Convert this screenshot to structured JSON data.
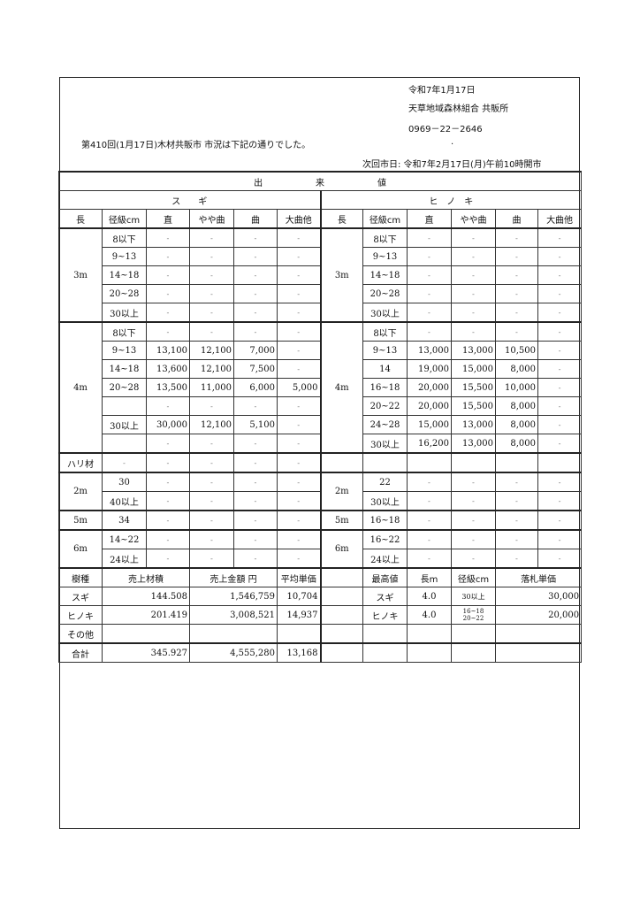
{
  "header": {
    "date": "令和7年1月17日",
    "organization": "天草地域森林組合 共販所",
    "phone": "0969－22－2646",
    "dot": ".",
    "notice": "第410回(1月17日)木材共販市 市況は下記の通りでした。",
    "next_market": "次回市日: 令和7年2月17日(月)午前10時開市"
  },
  "table": {
    "title": "出　　　　　　来　　　　　　値",
    "sugi_label": "ス　　ギ",
    "hinoki_label": "ヒ　ノ　キ",
    "columns": [
      "長",
      "径級cm",
      "直",
      "やや曲",
      "曲",
      "大曲他",
      "長",
      "径級cm",
      "直",
      "やや曲",
      "曲",
      "大曲他"
    ],
    "sections": [
      {
        "left_len": "3m",
        "right_len": "3m",
        "rows": [
          {
            "l": [
              "8以下",
              "-",
              "-",
              "-",
              "-"
            ],
            "r": [
              "8以下",
              "-",
              "-",
              "-",
              "-"
            ]
          },
          {
            "l": [
              "9~13",
              "-",
              "-",
              "-",
              "-"
            ],
            "r": [
              "9~13",
              "-",
              "-",
              "-",
              "-"
            ]
          },
          {
            "l": [
              "14~18",
              "-",
              "-",
              "-",
              "-"
            ],
            "r": [
              "14~18",
              "-",
              "-",
              "-",
              "-"
            ]
          },
          {
            "l": [
              "20~28",
              "-",
              "-",
              "-",
              "-"
            ],
            "r": [
              "20~28",
              "-",
              "-",
              "-",
              "-"
            ]
          },
          {
            "l": [
              "30以上",
              "-",
              "-",
              "-",
              "-"
            ],
            "r": [
              "30以上",
              "-",
              "-",
              "-",
              "-"
            ]
          }
        ]
      },
      {
        "left_len": "4m",
        "right_len": "4m",
        "rows": [
          {
            "l": [
              "8以下",
              "-",
              "-",
              "-",
              "-"
            ],
            "r": [
              "8以下",
              "-",
              "-",
              "-",
              "-"
            ]
          },
          {
            "l": [
              "9~13",
              "13,100",
              "12,100",
              "7,000",
              "-"
            ],
            "r": [
              "9~13",
              "13,000",
              "13,000",
              "10,500",
              "-"
            ]
          },
          {
            "l": [
              "14~18",
              "13,600",
              "12,100",
              "7,500",
              "-"
            ],
            "r": [
              "14",
              "19,000",
              "15,000",
              "8,000",
              "-"
            ]
          },
          {
            "l": [
              "20~28",
              "13,500",
              "11,000",
              "6,000",
              "5,000"
            ],
            "r": [
              "16~18",
              "20,000",
              "15,500",
              "10,000",
              "-"
            ]
          },
          {
            "l": [
              "",
              "-",
              "-",
              "-",
              "-"
            ],
            "r": [
              "20~22",
              "20,000",
              "15,500",
              "8,000",
              "-"
            ]
          },
          {
            "l": [
              "30以上",
              "30,000",
              "12,100",
              "5,100",
              "-"
            ],
            "r": [
              "24~28",
              "15,000",
              "13,000",
              "8,000",
              "-"
            ]
          },
          {
            "l": [
              "",
              "-",
              "-",
              "-",
              "-"
            ],
            "r": [
              "30以上",
              "16,200",
              "13,000",
              "8,000",
              "-"
            ]
          }
        ]
      },
      {
        "left_len": "ハリ材",
        "right_len": "",
        "rows": [
          {
            "l": null,
            "lfull": [
              "-",
              "-",
              "-",
              "-",
              "-"
            ],
            "r": [
              "",
              "",
              "",
              "",
              ""
            ]
          }
        ]
      },
      {
        "left_len": "2m",
        "right_len": "2m",
        "rows": [
          {
            "l": [
              "30",
              "-",
              "-",
              "-",
              "-"
            ],
            "r": [
              "22",
              "-",
              "-",
              "-",
              "-"
            ]
          },
          {
            "l": [
              "40以上",
              "-",
              "-",
              "-",
              "-"
            ],
            "r": [
              "30以上",
              "-",
              "-",
              "-",
              "-"
            ]
          }
        ]
      },
      {
        "left_len": "5m",
        "right_len": "5m",
        "rows": [
          {
            "l": [
              "34",
              "-",
              "-",
              "-",
              "-"
            ],
            "r": [
              "16~18",
              "-",
              "-",
              "-",
              "-"
            ]
          }
        ]
      },
      {
        "left_len": "6m",
        "right_len": "6m",
        "rows": [
          {
            "l": [
              "14~22",
              "-",
              "-",
              "-",
              "-"
            ],
            "r": [
              "16~22",
              "-",
              "-",
              "-",
              "-"
            ]
          },
          {
            "l": [
              "24以上",
              "-",
              "-",
              "-",
              "-"
            ],
            "r": [
              "24以上",
              "-",
              "-",
              "-",
              "-"
            ]
          }
        ]
      }
    ]
  },
  "summary": {
    "headers": {
      "species": "樹種",
      "volume": "売上材積",
      "amount": "売上金額 円",
      "avg": "平均単価",
      "top": "最高値",
      "length": "長m",
      "diameter": "径級cm",
      "price": "落札単価"
    },
    "rows": [
      {
        "species": "スギ",
        "volume": "144.508",
        "amount": "1,546,759",
        "avg": "10,704",
        "top": "スギ",
        "length": "4.0",
        "diameter": "30以上",
        "price": "30,000"
      },
      {
        "species": "ヒノキ",
        "volume": "201.419",
        "amount": "3,008,521",
        "avg": "14,937",
        "top": "ヒノキ",
        "length": "4.0",
        "diameter": "16~18\n20~22",
        "price": "20,000"
      },
      {
        "species": "その他",
        "volume": "",
        "amount": "",
        "avg": "",
        "top": "",
        "length": "",
        "diameter": "",
        "price": ""
      },
      {
        "species": "合計",
        "volume": "345.927",
        "amount": "4,555,280",
        "avg": "13,168",
        "top": "",
        "length": "",
        "diameter": "",
        "price": ""
      }
    ]
  }
}
